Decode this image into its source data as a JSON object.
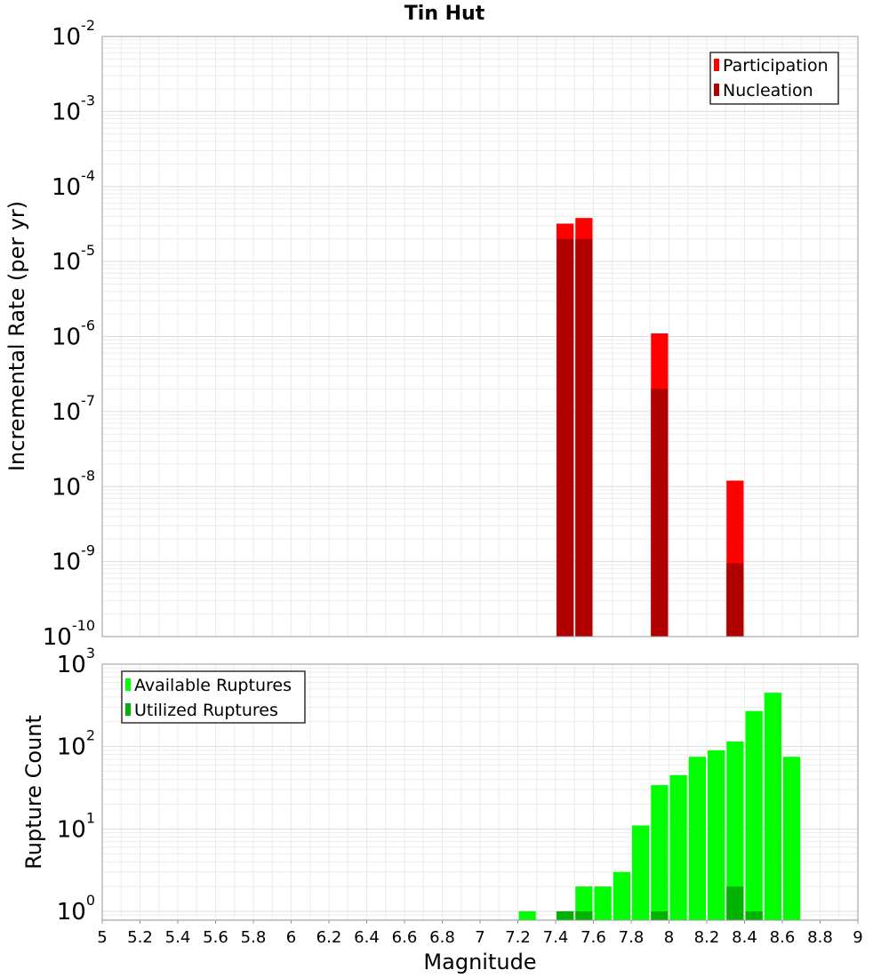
{
  "chart_data": [
    {
      "type": "bar",
      "title": "Tin Hut",
      "xlabel": "",
      "ylabel": "Incremental Rate (per yr)",
      "y_scale": "log",
      "xlim": [
        5,
        9
      ],
      "ylim": [
        1e-10,
        0.01
      ],
      "y_ticks": [
        {
          "base": "10",
          "exp": "-10"
        },
        {
          "base": "10",
          "exp": "-9"
        },
        {
          "base": "10",
          "exp": "-8"
        },
        {
          "base": "10",
          "exp": "-7"
        },
        {
          "base": "10",
          "exp": "-6"
        },
        {
          "base": "10",
          "exp": "-5"
        },
        {
          "base": "10",
          "exp": "-4"
        },
        {
          "base": "10",
          "exp": "-3"
        },
        {
          "base": "10",
          "exp": "-2"
        }
      ],
      "grid": true,
      "legend_position": "top-right",
      "series": [
        {
          "name": "Participation",
          "color": "#ff0000",
          "x": [
            7.45,
            7.55,
            7.95,
            8.35
          ],
          "values": [
            3.2e-05,
            3.8e-05,
            1.1e-06,
            1.2e-08
          ]
        },
        {
          "name": "Nucleation",
          "color": "#b00000",
          "x": [
            7.45,
            7.55,
            7.95,
            8.35
          ],
          "values": [
            2e-05,
            2e-05,
            2e-07,
            9.5e-10
          ]
        }
      ]
    },
    {
      "type": "bar",
      "title": "",
      "xlabel": "Magnitude",
      "ylabel": "Rupture Count",
      "y_scale": "log",
      "xlim": [
        5,
        9
      ],
      "ylim": [
        0.78,
        1000
      ],
      "x_ticks": [
        "5",
        "5.2",
        "5.4",
        "5.6",
        "5.8",
        "6",
        "6.2",
        "6.4",
        "6.6",
        "6.8",
        "7",
        "7.2",
        "7.4",
        "7.6",
        "7.8",
        "8",
        "8.2",
        "8.4",
        "8.6",
        "8.8",
        "9"
      ],
      "y_ticks": [
        {
          "base": "10",
          "exp": "0"
        },
        {
          "base": "10",
          "exp": "1"
        },
        {
          "base": "10",
          "exp": "2"
        },
        {
          "base": "10",
          "exp": "3"
        }
      ],
      "grid": true,
      "legend_position": "top-left",
      "series": [
        {
          "name": "Available Ruptures",
          "color": "#00ff00",
          "x": [
            7.25,
            7.45,
            7.55,
            7.65,
            7.75,
            7.85,
            7.95,
            8.05,
            8.15,
            8.25,
            8.35,
            8.45,
            8.55,
            8.65
          ],
          "values": [
            1,
            1,
            2,
            2,
            3,
            11,
            34,
            45,
            75,
            90,
            115,
            270,
            450,
            75
          ]
        },
        {
          "name": "Utilized Ruptures",
          "color": "#00b300",
          "x": [
            7.45,
            7.55,
            7.95,
            8.35,
            8.45
          ],
          "values": [
            1,
            1,
            1,
            2,
            1
          ]
        }
      ]
    }
  ]
}
